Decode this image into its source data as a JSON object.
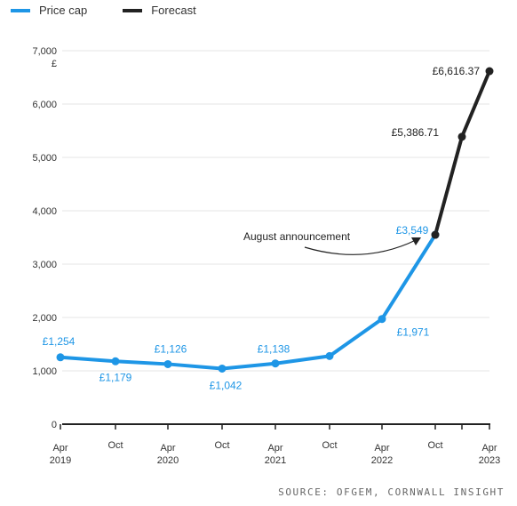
{
  "legend": [
    {
      "name": "Price cap",
      "color": "#1e96e6"
    },
    {
      "name": "Forecast",
      "color": "#222222"
    }
  ],
  "source": "SOURCE: OFGEM, CORNWALL INSIGHT",
  "chart_data": {
    "type": "line",
    "y_unit": "£",
    "ylim": [
      0,
      7000
    ],
    "yticks": [
      "0",
      "1,000",
      "2,000",
      "3,000",
      "4,000",
      "5,000",
      "6,000",
      "7,000"
    ],
    "grid": true,
    "legend_position": "top-left",
    "x_ticks": [
      {
        "label": "Apr",
        "sub": "2019"
      },
      {
        "label": "Oct",
        "sub": ""
      },
      {
        "label": "Apr",
        "sub": "2020"
      },
      {
        "label": "Oct",
        "sub": ""
      },
      {
        "label": "Apr",
        "sub": "2021"
      },
      {
        "label": "Oct",
        "sub": ""
      },
      {
        "label": "Apr",
        "sub": "2022"
      },
      {
        "label": "Oct",
        "sub": ""
      },
      {
        "label": "",
        "sub": ""
      },
      {
        "label": "Apr",
        "sub": "2023"
      }
    ],
    "series": [
      {
        "name": "Price cap",
        "color": "#1e96e6",
        "points": [
          {
            "x": "Apr 2019",
            "y": 1254,
            "label": "£1,254"
          },
          {
            "x": "Oct 2019",
            "y": 1179,
            "label": "£1,179"
          },
          {
            "x": "Apr 2020",
            "y": 1126,
            "label": "£1,126"
          },
          {
            "x": "Oct 2020",
            "y": 1042,
            "label": "£1,042"
          },
          {
            "x": "Apr 2021",
            "y": 1138,
            "label": "£1,138"
          },
          {
            "x": "Oct 2021",
            "y": 1277,
            "label": ""
          },
          {
            "x": "Apr 2022",
            "y": 1971,
            "label": "£1,971"
          },
          {
            "x": "Oct 2022",
            "y": 3549,
            "label": "£3,549"
          }
        ]
      },
      {
        "name": "Forecast",
        "color": "#222222",
        "points": [
          {
            "x": "Oct 2022",
            "y": 3549,
            "label": ""
          },
          {
            "x": "Jan 2023",
            "y": 5386.71,
            "label": "£5,386.71"
          },
          {
            "x": "Apr 2023",
            "y": 6616.37,
            "label": "£6,616.37"
          }
        ]
      }
    ],
    "annotation": {
      "text": "August announcement",
      "points_to": "Oct 2022"
    }
  }
}
